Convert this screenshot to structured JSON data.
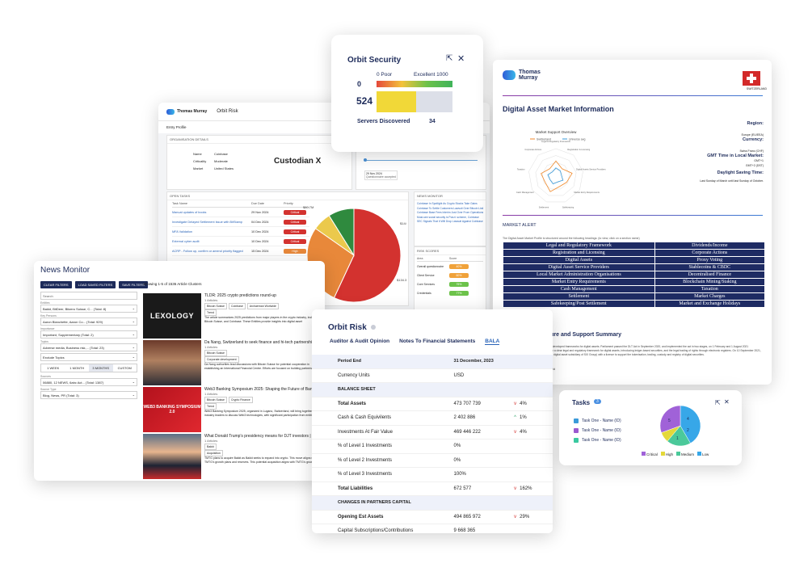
{
  "risk_back": {
    "brand": "Thomas Murray",
    "app": "Orbit Risk",
    "entry_profile": "Entry Profile",
    "org_details_title": "ORGANISATION DETAILS",
    "org_rows": [
      {
        "label": "Name",
        "value": "Coinbase"
      },
      {
        "label": "Criticality",
        "value": "Moderate"
      },
      {
        "label": "Market",
        "value": "United States"
      }
    ],
    "custodian": "Custodian X",
    "date_box": "29 Nov 2024",
    "date_box_sub": "Questionnaire accepted",
    "open_tasks_title": "OPEN TASKS",
    "task_headers": [
      "Task Name",
      "Due Date",
      "Priority"
    ],
    "tasks": [
      {
        "name": "Manual updates of books",
        "due": "29 Nov 2024",
        "priority": "Critical",
        "color": "#d3322f"
      },
      {
        "name": "Investigate Delayed Settlement Issue with BitStamp",
        "due": "04 Dec 2024",
        "priority": "Critical",
        "color": "#d3322f"
      },
      {
        "name": "MFA Validation",
        "due": "10 Dec 2024",
        "priority": "Critical",
        "color": "#d3322f"
      },
      {
        "name": "External cyber audit",
        "due": "10 Dec 2024",
        "priority": "Critical",
        "color": "#d3322f"
      },
      {
        "name": "ACRP - Follow up, confirm or amend priority flagged",
        "due": "15 Dec 2024",
        "priority": "High",
        "color": "#e8883a"
      }
    ],
    "pie_labels": [
      "$144.5M",
      "$134.3M",
      "$73.7M",
      "$80.7M"
    ],
    "news_title": "NEWS MONITOR",
    "news_items": [
      "Coinbase In Spotlight As Crypto Stocks Take Gains",
      "Coinbase To Settle Customers Lawsuit Over Bitcoin Listing",
      "Coinbase Base Fees Interim Just Over From Operations",
      "Must-see social security is Ponzi: scheme, Coinbase",
      "SEC Signals That It Will Drop Lawsuit Against Coinbase"
    ],
    "risk_scores_title": "RISK SCORES",
    "risk_headers": [
      "Area",
      "Score"
    ],
    "risk_rows": [
      {
        "area": "Overall questionnaire",
        "score": "40%",
        "color": "#f0a23a"
      },
      {
        "area": "Client Service",
        "score": "60%",
        "color": "#f0a23a"
      },
      {
        "area": "Core Services",
        "score": "75%",
        "color": "#6cc24a"
      },
      {
        "area": "Credentials",
        "score": "77%",
        "color": "#6cc24a"
      }
    ]
  },
  "news": {
    "title": "News Monitor",
    "buttons": [
      "CLEAR FILTERS",
      "LOAD SAVED FILTERS",
      "SAVE FILTERS"
    ],
    "showing": "Showing 1-5 of 1536 Article Clusters",
    "search_placeholder": "Search",
    "filters": [
      {
        "label": "Entities",
        "value": "Bakkt, BitDeer, Bitzero Suisse, C...  (Total: 8)"
      },
      {
        "label": "Key Persons",
        "value": "Aaron Blanchette, Aaron Co...  (Total: 929)"
      },
      {
        "label": "Importance",
        "value": "Important, Supplementary (Total: 2)"
      },
      {
        "label": "Topics",
        "value": "Adverse media, Business risk,...  (Total: 23)"
      },
      {
        "label": "",
        "value": "Exclude Topics"
      }
    ],
    "periods": [
      "1 WEEK",
      "1 MONTH",
      "3 MONTHS",
      "CUSTOM"
    ],
    "filters2": [
      {
        "label": "Sources",
        "value": "06880, 12 NEWS, 6abc Act...  (Total: 1387)"
      },
      {
        "label": "Source Type",
        "value": "Blog, News, PR (Total: 3)"
      }
    ],
    "articles": [
      {
        "thumb": "LEXOLOGY",
        "title": "TLDR: 2025 crypto predictions round-up",
        "meta": "1 Articles",
        "tags": [
          "Bitcoin Suisse",
          "Coinbase",
          "Archaeman Worlwide"
        ],
        "topic": "Trend",
        "snippet": "The article summarizes 2025 predictions from major players in the crypto industry, including Bitcoin Suisse, and Coinbase. These Entities provide insights into digital asset developments"
      },
      {
        "thumb": "",
        "title": "Da Nang, Switzerland to seek finance and hi-tech partnerships",
        "meta": "1 Articles",
        "tags": [
          "Bitcoin Suisse"
        ],
        "topic": "Corporate development",
        "snippet": "Da Nang authorities lead discussions with Bitcoin Suisse for potential cooperation in establishing an International Financial Centre. Efforts are focused on building partnerships in finance, technology"
      },
      {
        "thumb": "WEB3 BANKING SYMPOSIUM 2.0",
        "title": "Web3 Banking Symposium 2025: Shaping the Future of Banking with...",
        "meta": "1 Articles",
        "tags": [
          "Bitcoin Suisse",
          "Crypto Finance"
        ],
        "topic": "Trend",
        "snippet": "Web3 Banking Symposium 2025, organized in Lugano, Switzerland, will bring together industry leaders to discuss Web3 technologies, with significant participation from entities like Bitcoin Suisse"
      },
      {
        "thumb": "",
        "title": "What Donald Trump's presidency means for DJT investors | Investing",
        "meta": "1 Articles",
        "tags": [
          "Bakkt"
        ],
        "topic": "Acquisition",
        "snippet": "TMTG plans to acquire Bakkt as Bakkt seeks to expand into crypto. This move aligns with TMTG's growth plans and reserves. This potential acquisition aligns with TMTG's growth plans and"
      }
    ]
  },
  "security": {
    "title": "Orbit Security",
    "min_value": "0",
    "min_label": "0 Poor",
    "max_label": "Excellent 1000",
    "score": "524",
    "score_fraction": 0.524,
    "servers_label": "Servers Discovered",
    "servers_value": "34"
  },
  "digital": {
    "brand_line1": "Thomas",
    "brand_line2": "Murray",
    "country": "SWITZERLAND",
    "title": "Digital Asset Market Information",
    "radar_title": "Market Support Overview",
    "radar_legend": [
      "Switzerland",
      "Universe avg"
    ],
    "radar_axes": [
      "Legal & Regulatory Framework",
      "Registration & Licensing",
      "Digital Assets Service Providers",
      "Market Entry Requirements",
      "Safekeeping",
      "Settlement",
      "Cash Management",
      "Taxation",
      "Corporate Actions"
    ],
    "region_label": "Region:",
    "region_value": "Europe (EU/EEA)",
    "currency_label": "Currency:",
    "currency_value": "Swiss Franc (CHF)",
    "gmt_label": "GMT Time in Local Market:",
    "gmt_values": [
      "GMT+1",
      "GMT+2 (DST)"
    ],
    "dst_label": "Daylight Saving Time:",
    "dst_value": "Last Sunday of March until last Sunday of October.",
    "alert_title": "MARKET ALERT",
    "alert_intro": "The Digital Asset Market Profile is structured around the following headings: (to view, click on a section name)",
    "sections": [
      [
        "Legal and Regulatory Framework",
        "Dividends/Income"
      ],
      [
        "Registration and Licensing",
        "Corporate Actions"
      ],
      [
        "Digital Assets",
        "Proxy Voting"
      ],
      [
        "Digital Asset Service Providers",
        "Stablecoins & CBDC"
      ],
      [
        "Local Market Administration Organisations",
        "Decentralised Finance"
      ],
      [
        "Market Entry Requirements",
        "Blockchain Mining/Staking"
      ],
      [
        "Cash Management",
        "Taxation"
      ],
      [
        "Settlement",
        "Market Charges"
      ],
      [
        "Safekeeping/Post Settlement",
        "Market and Exchange Holidays"
      ]
    ],
    "infra_title": "Market Infrastructure and Support Summary",
    "infra_text": "Switzerland benefits from one of the most developed frameworks for digital assets. Parliament passed the DLT Act in September 2020, and implemented the act in two stages, on 1 February and 1 August 2021 respectively. Switzerland now benefits from a clear legal and regulatory framework for digital assets, introducing ledger-based securities, and the legal trading of rights through electronic registers. On 10 September 2021, FINMA awarded SIX Digital Exchange (the digital asset subsidiary of SIX Group) with a licence to support the tokenisation, trading, custody and registry of digital securities.",
    "copyright": "Copyright © 2025 Thomas Murray Digital Ltd"
  },
  "orbit_risk": {
    "title": "Orbit Risk",
    "tabs": [
      "Auditor & Audit Opinion",
      "Notes To Financial Statements",
      "BALA"
    ],
    "rows": [
      {
        "type": "head",
        "label": "Period End",
        "value": "31 December, 2023",
        "change": ""
      },
      {
        "type": "row",
        "label": "Currency Units",
        "value": "USD",
        "change": ""
      },
      {
        "type": "head",
        "label": "BALANCE SHEET",
        "value": "",
        "change": ""
      },
      {
        "type": "bold",
        "label": "Total Assets",
        "value": "473 707 739",
        "change": "4%",
        "dir": "down"
      },
      {
        "type": "row",
        "label": "Cash & Cash Equivilents",
        "value": "2 402 886",
        "change": "1%",
        "dir": "up"
      },
      {
        "type": "row",
        "label": "Investments At Fair Value",
        "value": "469 446 222",
        "change": "4%",
        "dir": "down"
      },
      {
        "type": "row",
        "label": "% of Level 1 Investments",
        "value": "0%",
        "change": ""
      },
      {
        "type": "row",
        "label": "% of Level 2 Investments",
        "value": "0%",
        "change": ""
      },
      {
        "type": "row",
        "label": "% of Level 3 Investments",
        "value": "100%",
        "change": ""
      },
      {
        "type": "bold",
        "label": "Total Liabilities",
        "value": "672 577",
        "change": "162%",
        "dir": "down"
      },
      {
        "type": "head",
        "label": "CHANGES IN PARTNERS CAPITAL",
        "value": "",
        "change": ""
      },
      {
        "type": "bold",
        "label": "Opening Est Assets",
        "value": "494 865 972",
        "change": "29%",
        "dir": "down"
      },
      {
        "type": "row",
        "label": "Capital Subscriptions/Contributions",
        "value": "9 668 365",
        "change": ""
      }
    ]
  },
  "tasks": {
    "title": "Tasks",
    "count": "3",
    "items": [
      "Task One - Name (ID)",
      "Task One - Name (ID)",
      "Task One - Name (ID)"
    ],
    "item_colors": [
      "#3a9ad9",
      "#9b59d0",
      "#3ac9a0"
    ],
    "pie_labels": [
      "5",
      "4",
      "2",
      "1"
    ],
    "legend": [
      {
        "label": "Critical",
        "color": "#a062d8"
      },
      {
        "label": "High",
        "color": "#e4d83a"
      },
      {
        "label": "Medium",
        "color": "#4bc99a"
      },
      {
        "label": "Low",
        "color": "#37a7e8"
      }
    ]
  }
}
